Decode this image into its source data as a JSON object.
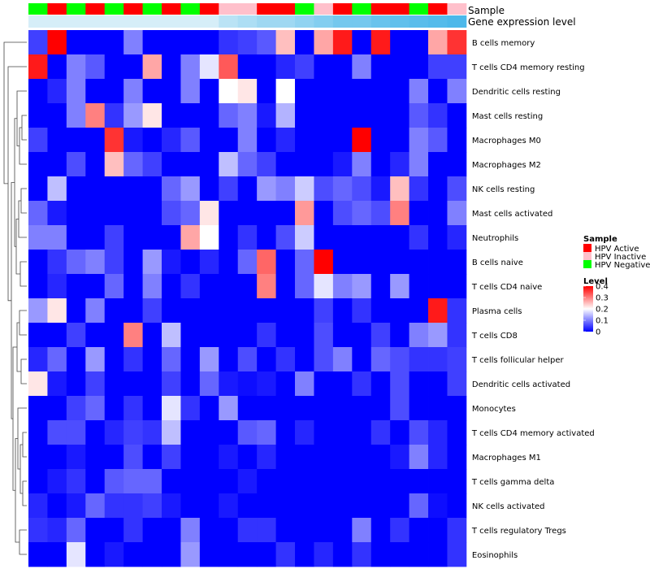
{
  "chart_data": {
    "type": "heatmap",
    "title": "",
    "annotation_labels": {
      "sample": "Sample",
      "gene_expression": "Gene expression level"
    },
    "sample_annotation": [
      "HPV Negative",
      "HPV Active",
      "HPV Negative",
      "HPV Active",
      "HPV Negative",
      "HPV Active",
      "HPV Negative",
      "HPV Active",
      "HPV Negative",
      "HPV Active",
      "HPV Inactive",
      "HPV Inactive",
      "HPV Active",
      "HPV Active",
      "HPV Negative",
      "HPV Inactive",
      "HPV Active",
      "HPV Negative",
      "HPV Active",
      "HPV Active",
      "HPV Negative",
      "HPV Active",
      "HPV Inactive"
    ],
    "gene_expression_annotation": [
      0,
      0,
      0,
      0,
      0,
      0,
      0,
      0,
      0,
      0,
      0.2,
      0.3,
      0.4,
      0.4,
      0.5,
      0.6,
      0.7,
      0.7,
      0.8,
      0.85,
      0.9,
      0.95,
      1
    ],
    "rows": [
      "B cells memory",
      "T cells CD4 memory resting",
      "Dendritic cells resting",
      "Mast cells resting",
      "Macrophages M0",
      "Macrophages M2",
      "NK cells resting",
      "Mast cells activated",
      "Neutrophils",
      "B cells naive",
      "T cells CD4 naive",
      "Plasma cells",
      "T cells CD8",
      "T cells follicular helper",
      "Dendritic cells activated",
      "Monocytes",
      "T cells CD4 memory activated",
      "Macrophages M1",
      "T cells gamma delta",
      "NK cells activated",
      "T cells regulatory  Tregs",
      "Eosinophils"
    ],
    "values": [
      [
        0.05,
        0.4,
        0,
        0,
        0,
        0.1,
        0,
        0,
        0,
        0,
        0.04,
        0.05,
        0.07,
        0.25,
        0,
        0.27,
        0.38,
        0,
        0.38,
        0,
        0,
        0.27,
        0.36
      ],
      [
        0.38,
        0,
        0.1,
        0.07,
        0,
        0,
        0.27,
        0,
        0.1,
        0.18,
        0.33,
        0,
        0,
        0.03,
        0.05,
        0,
        0,
        0.1,
        0,
        0,
        0,
        0.05,
        0.05
      ],
      [
        0,
        0.03,
        0.1,
        0,
        0,
        0.1,
        0,
        0,
        0.1,
        0,
        0.2,
        0.22,
        0,
        0.2,
        0,
        0,
        0,
        0,
        0,
        0,
        0.1,
        0,
        0.1
      ],
      [
        0,
        0,
        0.1,
        0.3,
        0.04,
        0.12,
        0.22,
        0,
        0,
        0,
        0.08,
        0.1,
        0.02,
        0.14,
        0,
        0,
        0,
        0,
        0,
        0,
        0.07,
        0.04,
        0
      ],
      [
        0.05,
        0,
        0,
        0,
        0.36,
        0.02,
        0,
        0.03,
        0.07,
        0,
        0,
        0.1,
        0,
        0.03,
        0,
        0,
        0,
        0.4,
        0,
        0,
        0.1,
        0.07,
        0
      ],
      [
        0,
        0,
        0.06,
        0,
        0.25,
        0.08,
        0.05,
        0,
        0,
        0,
        0.15,
        0.08,
        0.05,
        0,
        0,
        0,
        0.02,
        0.1,
        0,
        0.03,
        0.1,
        0,
        0
      ],
      [
        0,
        0.15,
        0,
        0,
        0,
        0,
        0,
        0.08,
        0.12,
        0,
        0.05,
        0,
        0.12,
        0.1,
        0.16,
        0.06,
        0.08,
        0.06,
        0.02,
        0.25,
        0.04,
        0,
        0.06
      ],
      [
        0.08,
        0.02,
        0,
        0,
        0,
        0,
        0,
        0.06,
        0.08,
        0.22,
        0,
        0,
        0,
        0,
        0.28,
        0,
        0.06,
        0.08,
        0.06,
        0.3,
        0,
        0,
        0.1
      ],
      [
        0.1,
        0.1,
        0,
        0,
        0.05,
        0,
        0,
        0,
        0.27,
        0.2,
        0,
        0.04,
        0,
        0.06,
        0.16,
        0,
        0,
        0,
        0,
        0,
        0.04,
        0,
        0.03
      ],
      [
        0,
        0.04,
        0.08,
        0.1,
        0.05,
        0,
        0.12,
        0.02,
        0,
        0.03,
        0,
        0.08,
        0.32,
        0,
        0.08,
        0.4,
        0,
        0,
        0,
        0,
        0,
        0,
        0
      ],
      [
        0,
        0.03,
        0,
        0,
        0.08,
        0,
        0.1,
        0,
        0.04,
        0,
        0,
        0,
        0.3,
        0,
        0.08,
        0.18,
        0.1,
        0.12,
        0,
        0.12,
        0,
        0,
        0
      ],
      [
        0.12,
        0.22,
        0,
        0.1,
        0,
        0,
        0.05,
        0,
        0,
        0,
        0,
        0,
        0,
        0,
        0,
        0.05,
        0,
        0.04,
        0,
        0,
        0,
        0.38,
        0.04
      ],
      [
        0,
        0,
        0.05,
        0,
        0,
        0.3,
        0,
        0.15,
        0,
        0,
        0,
        0,
        0.04,
        0,
        0,
        0.06,
        0,
        0,
        0.05,
        0,
        0.1,
        0.12,
        0.04
      ],
      [
        0.03,
        0.08,
        0,
        0.12,
        0,
        0.04,
        0,
        0.08,
        0,
        0.12,
        0,
        0.06,
        0,
        0.04,
        0,
        0.06,
        0.1,
        0,
        0.08,
        0.06,
        0.04,
        0.04,
        0.05
      ],
      [
        0.22,
        0.02,
        0,
        0.05,
        0,
        0,
        0,
        0.05,
        0,
        0.08,
        0.02,
        0.01,
        0.02,
        0,
        0.1,
        0,
        0,
        0.04,
        0,
        0.06,
        0,
        0,
        0.05
      ],
      [
        0,
        0,
        0.05,
        0.08,
        0,
        0.04,
        0,
        0.18,
        0.04,
        0,
        0.12,
        0,
        0,
        0,
        0,
        0,
        0,
        0,
        0,
        0.06,
        0,
        0,
        0
      ],
      [
        0,
        0.06,
        0.06,
        0,
        0.03,
        0.05,
        0.04,
        0.15,
        0,
        0,
        0,
        0.07,
        0.08,
        0,
        0.03,
        0,
        0,
        0,
        0.04,
        0,
        0.06,
        0.03,
        0
      ],
      [
        0,
        0,
        0.02,
        0,
        0,
        0.06,
        0,
        0.05,
        0,
        0,
        0.02,
        0,
        0.03,
        0,
        0,
        0,
        0,
        0,
        0,
        0.02,
        0.1,
        0.03,
        0
      ],
      [
        0,
        0.02,
        0.04,
        0,
        0.07,
        0.08,
        0.08,
        0,
        0,
        0,
        0,
        0.02,
        0,
        0,
        0,
        0,
        0,
        0,
        0,
        0,
        0,
        0,
        0
      ],
      [
        0.03,
        0,
        0.02,
        0.08,
        0.04,
        0.04,
        0.05,
        0.02,
        0,
        0,
        0.02,
        0,
        0,
        0,
        0,
        0,
        0,
        0,
        0,
        0,
        0.08,
        0.01,
        0
      ],
      [
        0.04,
        0.03,
        0.08,
        0,
        0,
        0.04,
        0,
        0,
        0.1,
        0,
        0,
        0.04,
        0.04,
        0,
        0,
        0,
        0,
        0.1,
        0,
        0.04,
        0,
        0,
        0.04
      ],
      [
        0,
        0,
        0.18,
        0,
        0.02,
        0,
        0,
        0,
        0.12,
        0,
        0,
        0,
        0,
        0.04,
        0,
        0.03,
        0,
        0.04,
        0,
        0,
        0,
        0,
        0.04
      ]
    ],
    "legend_sample": {
      "title": "Sample",
      "items": [
        {
          "label": "HPV Active",
          "color": "#FF0000"
        },
        {
          "label": "HPV Inactive",
          "color": "#FFC0CB"
        },
        {
          "label": "HPV Negative",
          "color": "#00FF00"
        }
      ]
    },
    "legend_level": {
      "title": "Level",
      "ticks": [
        "0.4",
        "0.3",
        "0.2",
        "0.1",
        "0"
      ],
      "tick_values": [
        0.4,
        0.3,
        0.2,
        0.1,
        0
      ],
      "range": [
        0,
        0.4
      ],
      "colors": {
        "low": "#0000FF",
        "mid": "#FFFFFF",
        "high": "#FF0000"
      }
    },
    "gene_expression_colors": {
      "low": "#D6EEF8",
      "high": "#4CB8EA"
    }
  }
}
